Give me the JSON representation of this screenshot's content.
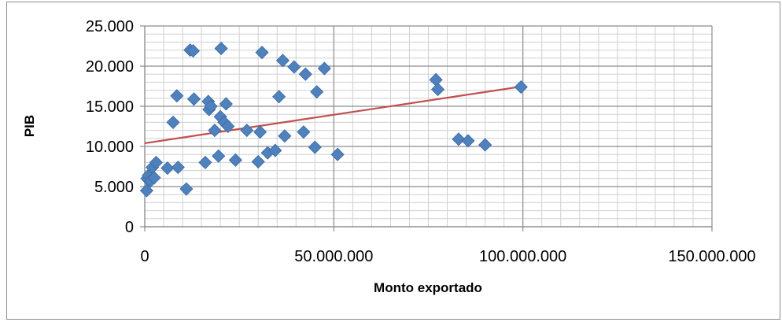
{
  "chart_data": {
    "type": "scatter",
    "title": "",
    "xlabel": "Monto exportado",
    "ylabel": "PIB",
    "xlim": [
      0,
      150000000
    ],
    "ylim": [
      0,
      25000
    ],
    "x_ticks": [
      0,
      50000000,
      100000000,
      150000000
    ],
    "x_tick_labels": [
      "0",
      "50.000.000",
      "100.000.000",
      "150.000.000"
    ],
    "y_ticks": [
      0,
      5000,
      10000,
      15000,
      20000,
      25000
    ],
    "y_tick_labels": [
      "0",
      "5.000",
      "10.000",
      "15.000",
      "20.000",
      "25.000"
    ],
    "grid": true,
    "legend": "none",
    "marker": "diamond",
    "marker_color": "#4f81bd",
    "trendline": {
      "type": "linear",
      "x": [
        0,
        99500000
      ],
      "y": [
        10400,
        17450
      ],
      "color": "#c0504d"
    },
    "series": [
      {
        "points": [
          [
            500000,
            4500
          ],
          [
            600000,
            6000
          ],
          [
            1000000,
            6400
          ],
          [
            1500000,
            5700
          ],
          [
            2000000,
            7400
          ],
          [
            2500000,
            6100
          ],
          [
            3000000,
            8000
          ],
          [
            6000000,
            7300
          ],
          [
            7500000,
            13000
          ],
          [
            8500000,
            16300
          ],
          [
            8800000,
            7400
          ],
          [
            11000000,
            4700
          ],
          [
            12000000,
            22000
          ],
          [
            12800000,
            21900
          ],
          [
            13000000,
            15900
          ],
          [
            16000000,
            8000
          ],
          [
            16800000,
            15600
          ],
          [
            17000000,
            14600
          ],
          [
            17500000,
            15000
          ],
          [
            18500000,
            12000
          ],
          [
            19500000,
            8800
          ],
          [
            20000000,
            13700
          ],
          [
            20200000,
            22200
          ],
          [
            21000000,
            13000
          ],
          [
            21500000,
            15300
          ],
          [
            22000000,
            12500
          ],
          [
            24000000,
            8300
          ],
          [
            27000000,
            12000
          ],
          [
            30000000,
            8100
          ],
          [
            30500000,
            11800
          ],
          [
            31000000,
            21700
          ],
          [
            32500000,
            9200
          ],
          [
            34500000,
            9500
          ],
          [
            35500000,
            16200
          ],
          [
            36500000,
            20700
          ],
          [
            37000000,
            11300
          ],
          [
            39500000,
            19900
          ],
          [
            42000000,
            11800
          ],
          [
            42500000,
            19000
          ],
          [
            45000000,
            9900
          ],
          [
            45500000,
            16800
          ],
          [
            47500000,
            19700
          ],
          [
            51000000,
            9000
          ],
          [
            77000000,
            18300
          ],
          [
            77500000,
            17100
          ],
          [
            83000000,
            10900
          ],
          [
            85500000,
            10700
          ],
          [
            90000000,
            10200
          ],
          [
            99500000,
            17400
          ]
        ]
      }
    ]
  }
}
